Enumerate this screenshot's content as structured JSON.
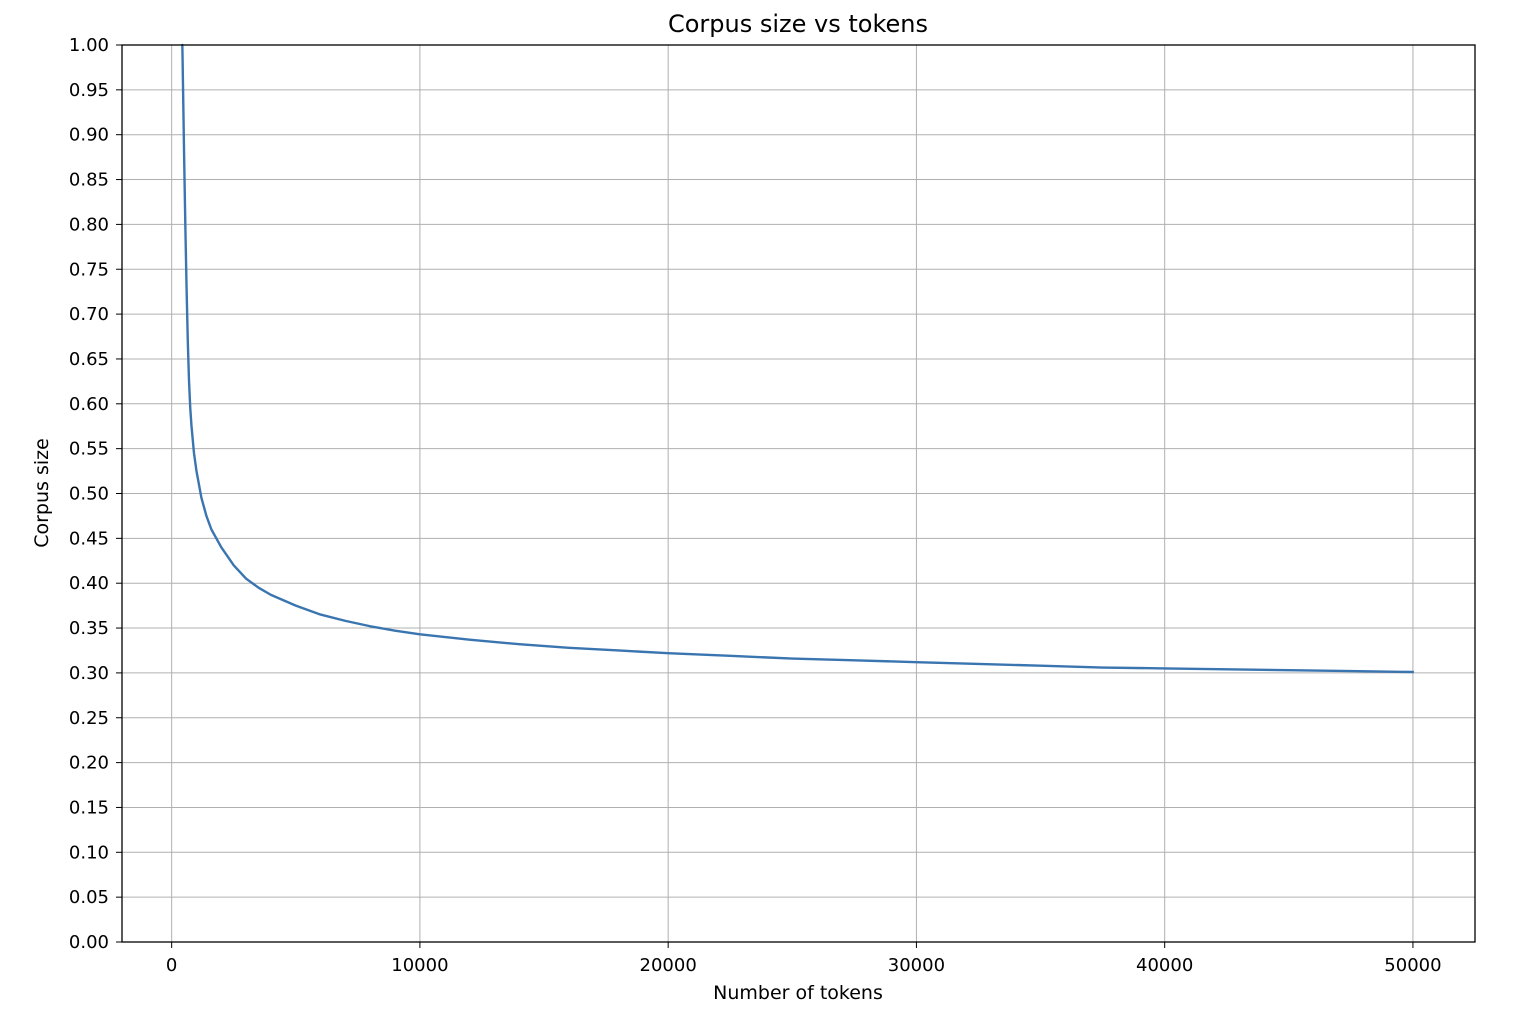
{
  "chart_data": {
    "type": "line",
    "title": "Corpus size vs tokens",
    "xlabel": "Number of tokens",
    "ylabel": "Corpus size",
    "xlim": [
      -2000,
      52500
    ],
    "ylim": [
      0,
      1.0
    ],
    "xticks": [
      0,
      10000,
      20000,
      30000,
      40000,
      50000
    ],
    "xtick_labels": [
      "0",
      "10000",
      "20000",
      "30000",
      "40000",
      "50000"
    ],
    "yticks": [
      0.0,
      0.05,
      0.1,
      0.15,
      0.2,
      0.25,
      0.3,
      0.35,
      0.4,
      0.45,
      0.5,
      0.55,
      0.6,
      0.65,
      0.7,
      0.75,
      0.8,
      0.85,
      0.9,
      0.95,
      1.0
    ],
    "ytick_labels": [
      "0.00",
      "0.05",
      "0.10",
      "0.15",
      "0.20",
      "0.25",
      "0.30",
      "0.35",
      "0.40",
      "0.45",
      "0.50",
      "0.55",
      "0.60",
      "0.65",
      "0.70",
      "0.75",
      "0.80",
      "0.85",
      "0.90",
      "0.95",
      "1.00"
    ],
    "grid": true,
    "series": [
      {
        "color": "#3a75b0",
        "x": [
          430,
          440,
          460,
          500,
          550,
          600,
          650,
          700,
          750,
          800,
          900,
          1000,
          1200,
          1400,
          1600,
          2000,
          2500,
          3000,
          3500,
          4000,
          5000,
          6000,
          7000,
          8000,
          9000,
          10000,
          12000,
          14000,
          16000,
          18000,
          20000,
          22500,
          25000,
          27500,
          30000,
          32500,
          35000,
          37500,
          40000,
          42500,
          45000,
          47500,
          50000
        ],
        "y": [
          1.0,
          0.985,
          0.95,
          0.88,
          0.8,
          0.73,
          0.67,
          0.625,
          0.595,
          0.575,
          0.545,
          0.525,
          0.495,
          0.475,
          0.46,
          0.44,
          0.42,
          0.405,
          0.395,
          0.387,
          0.375,
          0.365,
          0.358,
          0.352,
          0.347,
          0.343,
          0.337,
          0.332,
          0.328,
          0.325,
          0.322,
          0.319,
          0.316,
          0.314,
          0.312,
          0.31,
          0.308,
          0.306,
          0.305,
          0.304,
          0.303,
          0.302,
          0.301
        ]
      }
    ]
  }
}
